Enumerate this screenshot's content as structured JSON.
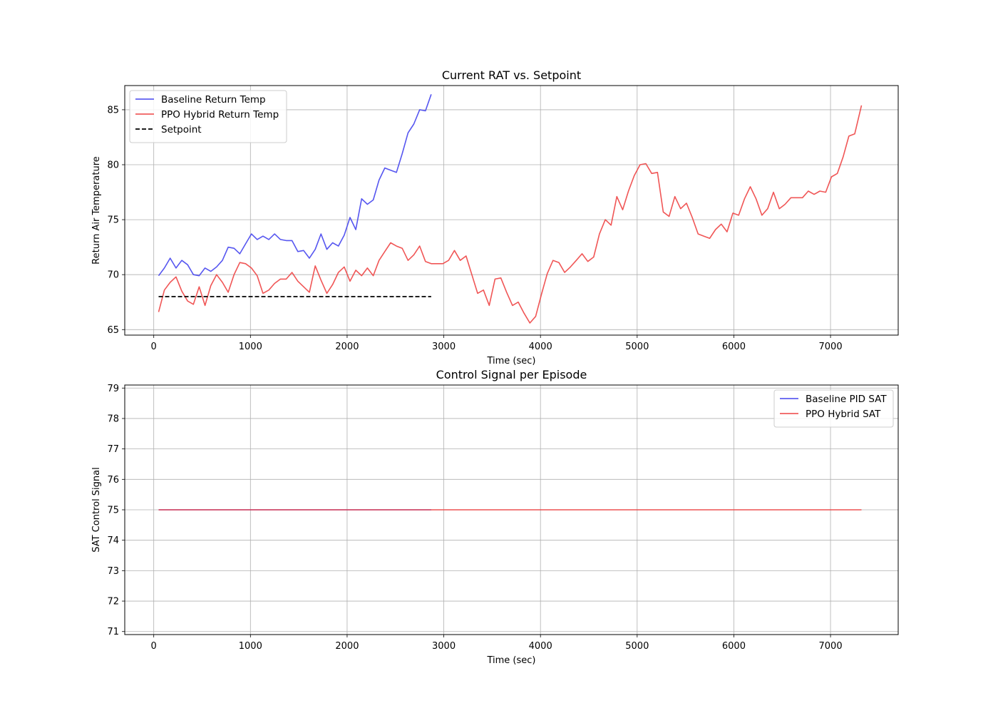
{
  "chart_data": [
    {
      "type": "line",
      "title": "Current RAT vs. Setpoint",
      "xlabel": "Time (sec)",
      "ylabel": "Return Air Temperature",
      "xlim": [
        -300,
        7700
      ],
      "ylim": [
        64.5,
        87.2
      ],
      "xticks": [
        0,
        1000,
        2000,
        3000,
        4000,
        5000,
        6000,
        7000
      ],
      "yticks": [
        65,
        70,
        75,
        80,
        85
      ],
      "grid": true,
      "legend_position": "upper-left",
      "series": [
        {
          "name": "Baseline Return Temp",
          "color": "#4444ee",
          "style": "solid",
          "x": [
            50,
            110,
            170,
            230,
            290,
            350,
            410,
            470,
            530,
            590,
            650,
            710,
            770,
            830,
            890,
            950,
            1010,
            1070,
            1130,
            1190,
            1250,
            1310,
            1370,
            1430,
            1490,
            1550,
            1610,
            1670,
            1730,
            1790,
            1850,
            1910,
            1970,
            2030,
            2090,
            2150,
            2210,
            2270,
            2330,
            2390,
            2450,
            2510,
            2570,
            2630,
            2690,
            2750,
            2810,
            2870
          ],
          "values": [
            69.9,
            70.6,
            71.5,
            70.6,
            71.3,
            70.9,
            70.0,
            69.9,
            70.6,
            70.3,
            70.7,
            71.3,
            72.5,
            72.4,
            71.9,
            72.8,
            73.7,
            73.2,
            73.5,
            73.2,
            73.7,
            73.2,
            73.1,
            73.1,
            72.1,
            72.2,
            71.5,
            72.3,
            73.7,
            72.3,
            72.9,
            72.6,
            73.6,
            75.2,
            74.1,
            76.9,
            76.4,
            76.8,
            78.6,
            79.7,
            79.5,
            79.3,
            81.0,
            82.9,
            83.7,
            85.0,
            84.9,
            86.4
          ]
        },
        {
          "name": "PPO Hybrid Return Temp",
          "color": "#ee4444",
          "style": "solid",
          "x": [
            50,
            110,
            170,
            230,
            290,
            350,
            410,
            470,
            530,
            590,
            650,
            710,
            770,
            830,
            890,
            950,
            1010,
            1070,
            1130,
            1190,
            1250,
            1310,
            1370,
            1430,
            1490,
            1550,
            1610,
            1670,
            1730,
            1790,
            1850,
            1910,
            1970,
            2030,
            2090,
            2150,
            2210,
            2270,
            2330,
            2390,
            2450,
            2510,
            2570,
            2630,
            2690,
            2750,
            2810,
            2870,
            2930,
            2990,
            3050,
            3110,
            3170,
            3230,
            3290,
            3350,
            3410,
            3470,
            3530,
            3590,
            3650,
            3710,
            3770,
            3830,
            3890,
            3950,
            4010,
            4070,
            4130,
            4190,
            4250,
            4310,
            4370,
            4430,
            4490,
            4550,
            4610,
            4670,
            4730,
            4790,
            4850,
            4910,
            4970,
            5030,
            5090,
            5150,
            5210,
            5270,
            5330,
            5390,
            5450,
            5510,
            5570,
            5630,
            5690,
            5750,
            5810,
            5870,
            5930,
            5990,
            6050,
            6110,
            6170,
            6230,
            6290,
            6350,
            6410,
            6470,
            6530,
            6590,
            6650,
            6710,
            6770,
            6830,
            6890,
            6950,
            7010,
            7070,
            7130,
            7190,
            7250,
            7320
          ],
          "values": [
            66.6,
            68.6,
            69.3,
            69.8,
            68.5,
            67.6,
            67.3,
            68.9,
            67.2,
            69.0,
            70.0,
            69.3,
            68.4,
            70.0,
            71.1,
            71.0,
            70.6,
            69.9,
            68.3,
            68.6,
            69.2,
            69.6,
            69.6,
            70.2,
            69.4,
            68.9,
            68.4,
            70.8,
            69.5,
            68.3,
            69.1,
            70.2,
            70.7,
            69.4,
            70.4,
            69.9,
            70.6,
            69.9,
            71.3,
            72.1,
            72.9,
            72.6,
            72.4,
            71.3,
            71.8,
            72.6,
            71.2,
            71.0,
            71.0,
            71.0,
            71.3,
            72.2,
            71.3,
            71.7,
            70.0,
            68.3,
            68.6,
            67.2,
            69.6,
            69.7,
            68.4,
            67.2,
            67.5,
            66.5,
            65.6,
            66.2,
            68.2,
            70.1,
            71.3,
            71.1,
            70.2,
            70.7,
            71.3,
            71.9,
            71.2,
            71.6,
            73.7,
            75.0,
            74.5,
            77.1,
            75.9,
            77.6,
            79.0,
            80.0,
            80.1,
            79.2,
            79.3,
            75.7,
            75.3,
            77.1,
            76.0,
            76.5,
            75.2,
            73.7,
            73.5,
            73.3,
            74.1,
            74.6,
            73.9,
            75.6,
            75.4,
            76.9,
            78.0,
            76.9,
            75.4,
            76.0,
            77.5,
            76.0,
            76.4,
            77.0,
            77.0,
            77.0,
            77.6,
            77.3,
            77.6,
            77.5,
            78.9,
            79.2,
            80.7,
            82.6,
            82.8,
            85.4
          ]
        },
        {
          "name": "Setpoint",
          "color": "#000000",
          "style": "dashed",
          "x": [
            50,
            2870
          ],
          "values": [
            68,
            68
          ]
        }
      ]
    },
    {
      "type": "line",
      "title": "Control Signal per Episode",
      "xlabel": "Time (sec)",
      "ylabel": "SAT Control Signal",
      "xlim": [
        -300,
        7700
      ],
      "ylim": [
        70.9,
        79.1
      ],
      "xticks": [
        0,
        1000,
        2000,
        3000,
        4000,
        5000,
        6000,
        7000
      ],
      "yticks": [
        71,
        72,
        73,
        74,
        75,
        76,
        77,
        78,
        79
      ],
      "grid": true,
      "legend_position": "upper-right",
      "series": [
        {
          "name": "Baseline PID SAT",
          "color": "#4444ee",
          "style": "solid",
          "x": [
            50,
            2870
          ],
          "values": [
            75,
            75
          ]
        },
        {
          "name": "PPO Hybrid SAT",
          "color": "#ee4444",
          "style": "solid",
          "x": [
            50,
            7320
          ],
          "values": [
            75,
            75
          ]
        }
      ]
    }
  ]
}
